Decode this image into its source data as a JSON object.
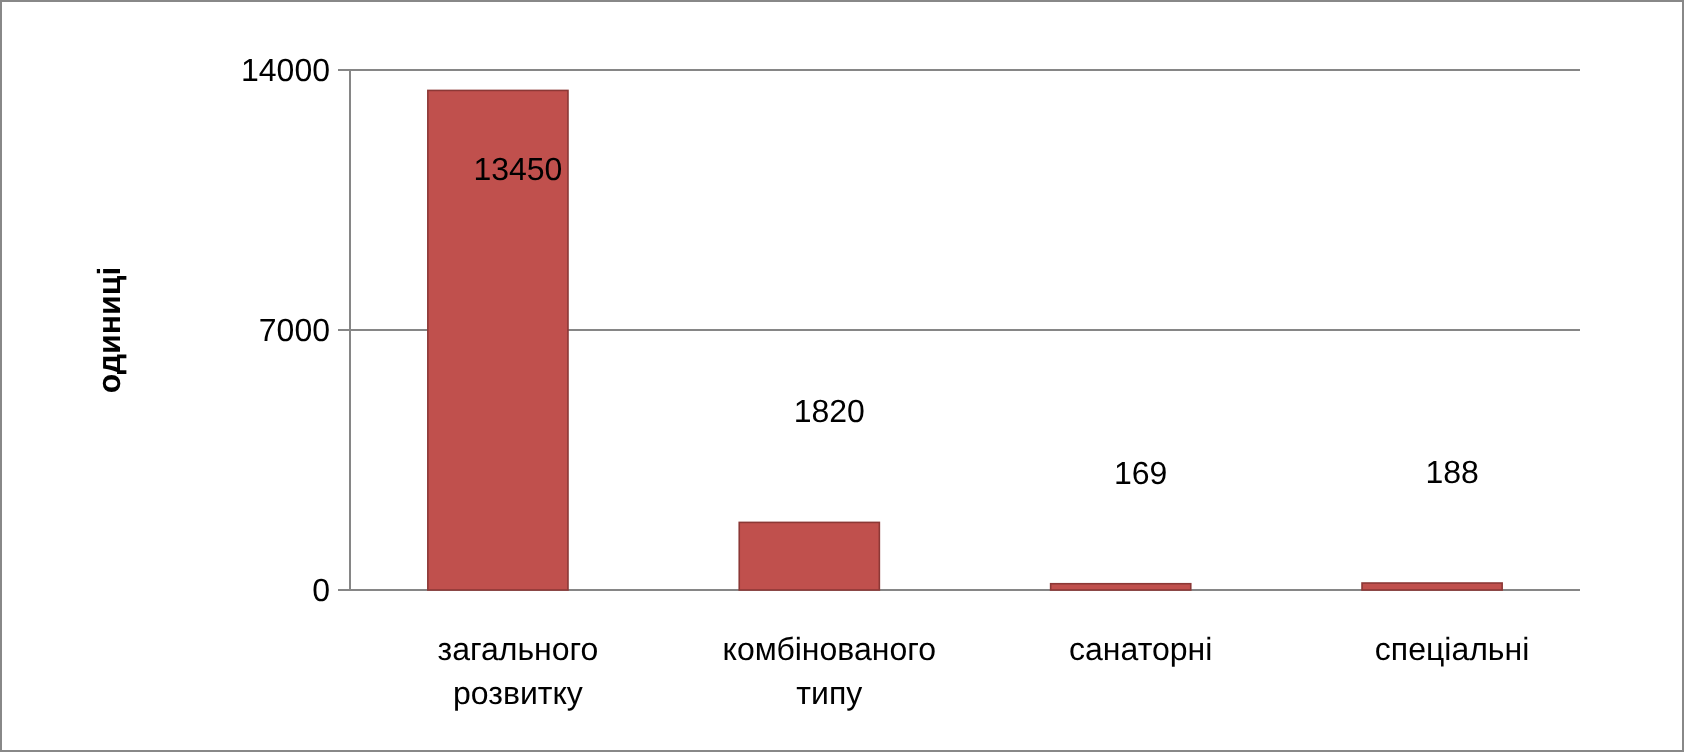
{
  "chart_data": {
    "type": "bar",
    "ylabel": "одиниці",
    "categories": [
      "загального розвитку",
      "комбінованого типу",
      "санаторні",
      "спеціальні"
    ],
    "values": [
      13450,
      1820,
      169,
      188
    ],
    "color": "#c0504d",
    "ylim": [
      0,
      14000
    ],
    "yticks": [
      0,
      7000,
      14000
    ],
    "grid": "y",
    "data_labels": true
  }
}
